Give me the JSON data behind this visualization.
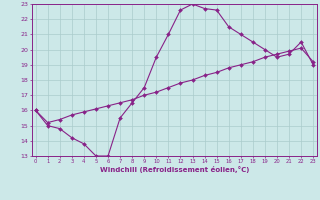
{
  "line1_x": [
    0,
    1,
    2,
    3,
    4,
    5,
    6,
    7,
    8,
    9,
    10,
    11,
    12,
    13,
    14,
    15,
    16,
    17,
    18,
    19,
    20,
    21,
    22,
    23
  ],
  "line1_y": [
    16.0,
    15.0,
    14.8,
    14.2,
    13.8,
    13.0,
    13.0,
    15.5,
    16.5,
    17.5,
    19.5,
    21.0,
    22.6,
    23.0,
    22.7,
    22.6,
    21.5,
    21.0,
    20.5,
    20.0,
    19.5,
    19.7,
    20.5,
    19.0
  ],
  "line2_x": [
    0,
    1,
    2,
    3,
    4,
    5,
    6,
    7,
    8,
    9,
    10,
    11,
    12,
    13,
    14,
    15,
    16,
    17,
    18,
    19,
    20,
    21,
    22,
    23
  ],
  "line2_y": [
    16.0,
    15.2,
    15.4,
    15.7,
    15.9,
    16.1,
    16.3,
    16.5,
    16.7,
    17.0,
    17.2,
    17.5,
    17.8,
    18.0,
    18.3,
    18.5,
    18.8,
    19.0,
    19.2,
    19.5,
    19.7,
    19.9,
    20.1,
    19.2
  ],
  "line_color": "#882288",
  "background_color": "#cce8e8",
  "grid_color": "#aacccc",
  "xlabel": "Windchill (Refroidissement éolien,°C)",
  "xlim": [
    0,
    23
  ],
  "ylim": [
    13,
    23
  ],
  "xticks": [
    0,
    1,
    2,
    3,
    4,
    5,
    6,
    7,
    8,
    9,
    10,
    11,
    12,
    13,
    14,
    15,
    16,
    17,
    18,
    19,
    20,
    21,
    22,
    23
  ],
  "yticks": [
    13,
    14,
    15,
    16,
    17,
    18,
    19,
    20,
    21,
    22,
    23
  ]
}
